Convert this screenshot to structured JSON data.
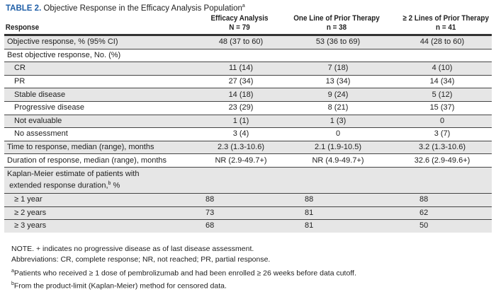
{
  "title": {
    "label": "TABLE 2.",
    "text": "Objective Response in the Efficacy Analysis Population",
    "sup": "a"
  },
  "headers": [
    {
      "line1": "",
      "line2": "Response"
    },
    {
      "line1": "Efficacy Analysis",
      "line2": "N = 79"
    },
    {
      "line1": "One Line of Prior Therapy",
      "line2": "n = 38"
    },
    {
      "line1": "≥ 2 Lines of Prior Therapy",
      "line2": "n = 41"
    }
  ],
  "rows": [
    {
      "label": "Objective response, % (95% CI)",
      "values": [
        "48 (37 to 60)",
        "53 (36 to 69)",
        "44 (28 to 60)"
      ]
    },
    {
      "label": "Best objective response, No. (%)",
      "values": [
        "",
        "",
        ""
      ]
    },
    {
      "label": "CR",
      "values": [
        "11 (14)",
        "7 (18)",
        "4 (10)"
      ]
    },
    {
      "label": "PR",
      "values": [
        "27 (34)",
        "13 (34)",
        "14 (34)"
      ]
    },
    {
      "label": "Stable disease",
      "values": [
        "14 (18)",
        "9 (24)",
        "5 (12)"
      ]
    },
    {
      "label": "Progressive disease",
      "values": [
        "23 (29)",
        "8 (21)",
        "15 (37)"
      ]
    },
    {
      "label": "Not evaluable",
      "values": [
        "1 (1)",
        "1 (3)",
        "0"
      ]
    },
    {
      "label": "No assessment",
      "values": [
        "3 (4)",
        "0",
        "3 (7)"
      ]
    },
    {
      "label": "Time to response, median (range), months",
      "values": [
        "2.3 (1.3-10.6)",
        "2.1 (1.9-10.5)",
        "3.2 (1.3-10.6)"
      ]
    },
    {
      "label": "Duration of response, median (range), months",
      "values": [
        "NR (2.9-49.7+)",
        "NR (4.9-49.7+)",
        "32.6 (2.9-49.6+)"
      ]
    }
  ],
  "km": {
    "label1": "Kaplan-Meier estimate of patients with",
    "label2": "extended response duration,",
    "sup": "b",
    "unit": "%",
    "rows": [
      {
        "label": "≥ 1 year",
        "values": [
          "88",
          "88",
          "88"
        ]
      },
      {
        "label": "≥ 2 years",
        "values": [
          "73",
          "81",
          "62"
        ]
      },
      {
        "label": "≥ 3 years",
        "values": [
          "68",
          "81",
          "50"
        ]
      }
    ]
  },
  "notes": {
    "note": "NOTE. + indicates no progressive disease as of last disease assessment.",
    "abbrev": "Abbreviations: CR, complete response; NR, not reached; PR, partial response.",
    "a_sup": "a",
    "a": "Patients who received ≥ 1 dose of pembrolizumab and had been enrolled ≥ 26 weeks before data cutoff.",
    "b_sup": "b",
    "b": "From the product-limit (Kaplan-Meier) method for censored data."
  },
  "colors": {
    "title_label": "#1f5fa8",
    "row_shade": "#e6e6e6"
  }
}
